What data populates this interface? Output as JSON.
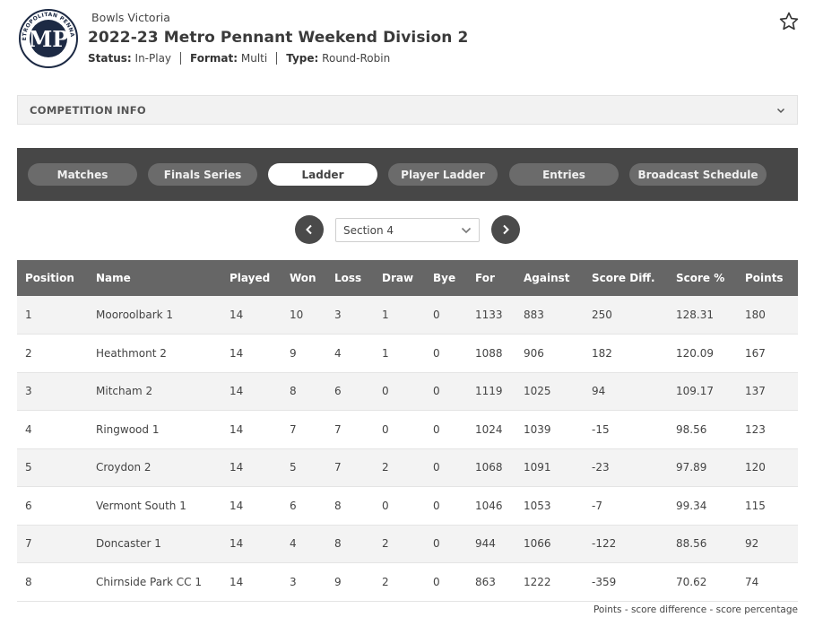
{
  "header": {
    "logo_text": "METROPOLITAN PENNANT",
    "logo_initials": "MP",
    "org": "Bowls Victoria",
    "title": "2022-23 Metro Pennant Weekend Division 2",
    "status_label": "Status:",
    "status_value": "In-Play",
    "format_label": "Format:",
    "format_value": "Multi",
    "type_label": "Type:",
    "type_value": "Round-Robin"
  },
  "competition_info": {
    "label": "COMPETITION INFO"
  },
  "tabs": [
    {
      "label": "Matches"
    },
    {
      "label": "Finals Series"
    },
    {
      "label": "Ladder",
      "active": true
    },
    {
      "label": "Player Ladder"
    },
    {
      "label": "Entries"
    },
    {
      "label": "Broadcast Schedule"
    }
  ],
  "pager": {
    "section_selected": "Section 4"
  },
  "ladder": {
    "columns": [
      "Position",
      "Name",
      "Played",
      "Won",
      "Loss",
      "Draw",
      "Bye",
      "For",
      "Against",
      "Score Diff.",
      "Score %",
      "Points"
    ],
    "rows": [
      [
        "1",
        "Mooroolbark 1",
        "14",
        "10",
        "3",
        "1",
        "0",
        "1133",
        "883",
        "250",
        "128.31",
        "180"
      ],
      [
        "2",
        "Heathmont 2",
        "14",
        "9",
        "4",
        "1",
        "0",
        "1088",
        "906",
        "182",
        "120.09",
        "167"
      ],
      [
        "3",
        "Mitcham 2",
        "14",
        "8",
        "6",
        "0",
        "0",
        "1119",
        "1025",
        "94",
        "109.17",
        "137"
      ],
      [
        "4",
        "Ringwood 1",
        "14",
        "7",
        "7",
        "0",
        "0",
        "1024",
        "1039",
        "-15",
        "98.56",
        "123"
      ],
      [
        "5",
        "Croydon 2",
        "14",
        "5",
        "7",
        "2",
        "0",
        "1068",
        "1091",
        "-23",
        "97.89",
        "120"
      ],
      [
        "6",
        "Vermont South 1",
        "14",
        "6",
        "8",
        "0",
        "0",
        "1046",
        "1053",
        "-7",
        "99.34",
        "115"
      ],
      [
        "7",
        "Doncaster 1",
        "14",
        "4",
        "8",
        "2",
        "0",
        "944",
        "1066",
        "-122",
        "88.56",
        "92"
      ],
      [
        "8",
        "Chirnside Park CC 1",
        "14",
        "3",
        "9",
        "2",
        "0",
        "863",
        "1222",
        "-359",
        "70.62",
        "74"
      ]
    ]
  },
  "footnote": "Points - score difference - score percentage",
  "colors": {
    "tabbar_bg": "#474747",
    "header_row_bg": "#666666",
    "tab_bg": "#6b6b6b"
  }
}
